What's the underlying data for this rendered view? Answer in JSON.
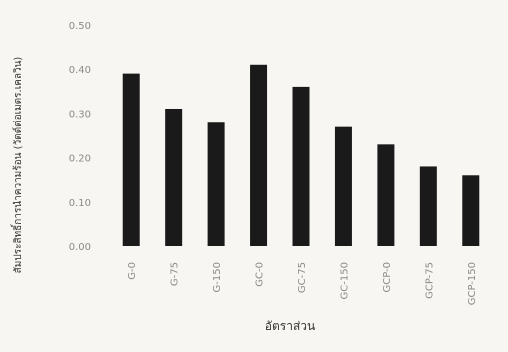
{
  "chart_data": {
    "type": "bar",
    "categories": [
      "G-0",
      "G-75",
      "G-150",
      "GC-0",
      "GC-75",
      "GC-150",
      "GCP-0",
      "GCP-75",
      "GCP-150"
    ],
    "values": [
      0.39,
      0.31,
      0.28,
      0.41,
      0.36,
      0.27,
      0.23,
      0.18,
      0.16
    ],
    "ylim": [
      0,
      0.5
    ],
    "yticks": [
      "0.00",
      "0.10",
      "0.20",
      "0.30",
      "0.40",
      "0.50"
    ],
    "xlabel": "อัตราส่วน",
    "ylabel": "สัมประสิทธิ์การนำความร้อน (วัตต์ต่อเมตร.เคลวิน)",
    "grid": false,
    "colors": {
      "bar": "#1a1a1a",
      "background": "#f7f6f2",
      "tick_text": "#8a8a8a"
    }
  }
}
